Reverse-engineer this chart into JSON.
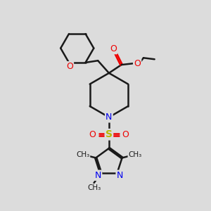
{
  "bg_color": "#dcdcdc",
  "bond_color": "#1a1a1a",
  "N_color": "#0000ee",
  "O_color": "#ee0000",
  "S_color": "#b8b800",
  "line_width": 1.8,
  "figsize": [
    3.0,
    3.0
  ],
  "dpi": 100,
  "xlim": [
    0,
    300
  ],
  "ylim": [
    0,
    300
  ]
}
